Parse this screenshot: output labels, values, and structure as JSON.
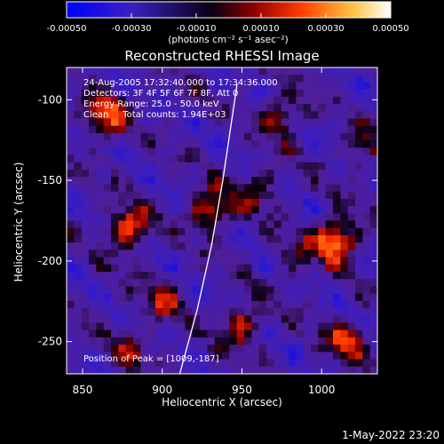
{
  "colorbar": {
    "tick_labels": [
      "-0.00050",
      "-0.00030",
      "-0.00010",
      "0.00010",
      "0.00030",
      "0.00050"
    ],
    "unit_label": "(photons cm⁻² s⁻¹ asec⁻²)"
  },
  "annotations": {
    "time_range": "24-Aug-2005 17:32:40.000 to 17:34:36.000",
    "detectors": "Detectors: 3F 4F 5F 6F 7F 8F, Att 0",
    "energy_range": "Energy Range: 25.0 - 50.0 keV",
    "clean_counts": "Clean     Total counts: 1.94E+03",
    "peak_position": "Position of Peak = [1009,-187]"
  },
  "footer_timestamp": "1-May-2022 23:20",
  "colors": {
    "background": "#000000",
    "text": "#ffffff",
    "colormap_stops": [
      "#0000ff",
      "#5a1ea8",
      "#000000",
      "#b00000",
      "#ff5a00",
      "#ffd040",
      "#ffffff"
    ]
  },
  "chart_data": {
    "type": "heatmap",
    "title": "Reconstructed RHESSI Image",
    "xlabel": "Heliocentric X (arcsec)",
    "ylabel": "Heliocentric Y (arcsec)",
    "xlim": [
      840,
      1035
    ],
    "ylim": [
      -270,
      -80
    ],
    "x_ticks": [
      850,
      900,
      950,
      1000
    ],
    "y_ticks": [
      -100,
      -150,
      -200,
      -250
    ],
    "value_range": [
      -0.0005,
      0.0005
    ],
    "colorbar_ticks": [
      -0.0005,
      -0.0003,
      -0.0001,
      0.0001,
      0.0003,
      0.0005
    ],
    "peak": {
      "x": 1009,
      "y": -187
    },
    "bright_sources": [
      {
        "x": 1009,
        "y": -187,
        "value": 0.0005
      },
      {
        "x": 878,
        "y": -180,
        "value": 0.00042
      },
      {
        "x": 865,
        "y": -110,
        "value": 0.00038
      },
      {
        "x": 930,
        "y": -168,
        "value": 0.00036
      },
      {
        "x": 975,
        "y": -110,
        "value": 0.0003
      },
      {
        "x": 1015,
        "y": -250,
        "value": 0.00032
      },
      {
        "x": 950,
        "y": -240,
        "value": 0.0003
      },
      {
        "x": 900,
        "y": -225,
        "value": 0.00024
      },
      {
        "x": 960,
        "y": -155,
        "value": 0.00022
      },
      {
        "x": 1025,
        "y": -130,
        "value": 0.0002
      },
      {
        "x": 880,
        "y": -255,
        "value": 0.00018
      },
      {
        "x": 985,
        "y": -200,
        "value": 0.00016
      }
    ],
    "limb_curve": [
      {
        "x": 911,
        "y": -270
      },
      {
        "x": 922,
        "y": -230
      },
      {
        "x": 931,
        "y": -190
      },
      {
        "x": 938,
        "y": -150
      },
      {
        "x": 944,
        "y": -110
      },
      {
        "x": 947,
        "y": -90
      }
    ]
  }
}
